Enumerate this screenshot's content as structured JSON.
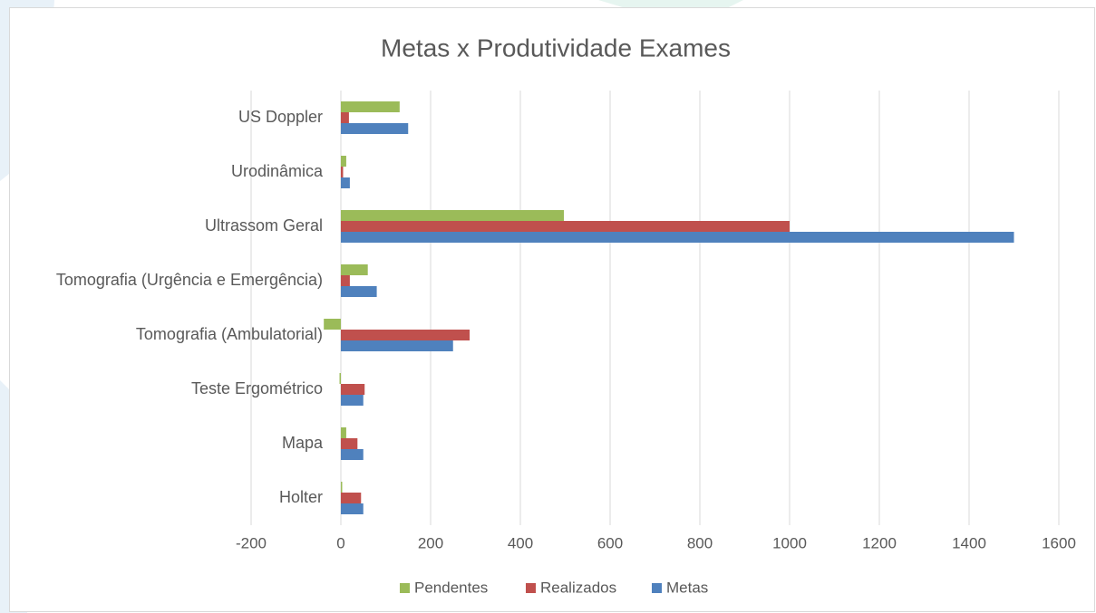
{
  "chart_data": {
    "type": "barh",
    "title": "Metas x Produtividade Exames",
    "categories": [
      "Holter",
      "Mapa",
      "Teste Ergométrico",
      "Tomografia (Ambulatorial)",
      "Tomografia (Urgência e Emergência)",
      "Ultrassom Geral",
      "Urodinâmica",
      "US Doppler"
    ],
    "series": [
      {
        "name": "Pendentes",
        "color": "#9bbb59",
        "values": [
          3,
          12,
          -3,
          -38,
          60,
          497,
          12,
          131
        ]
      },
      {
        "name": "Realizados",
        "color": "#c0504d",
        "values": [
          45,
          37,
          53,
          287,
          20,
          1000,
          5,
          18
        ]
      },
      {
        "name": "Metas",
        "color": "#4f81bd",
        "values": [
          50,
          50,
          50,
          250,
          80,
          1500,
          20,
          150
        ]
      }
    ],
    "xlim": [
      -200,
      1600
    ],
    "xticks": [
      -200,
      0,
      200,
      400,
      600,
      800,
      1000,
      1200,
      1400,
      1600
    ],
    "grid": true,
    "legend": "bottom"
  }
}
